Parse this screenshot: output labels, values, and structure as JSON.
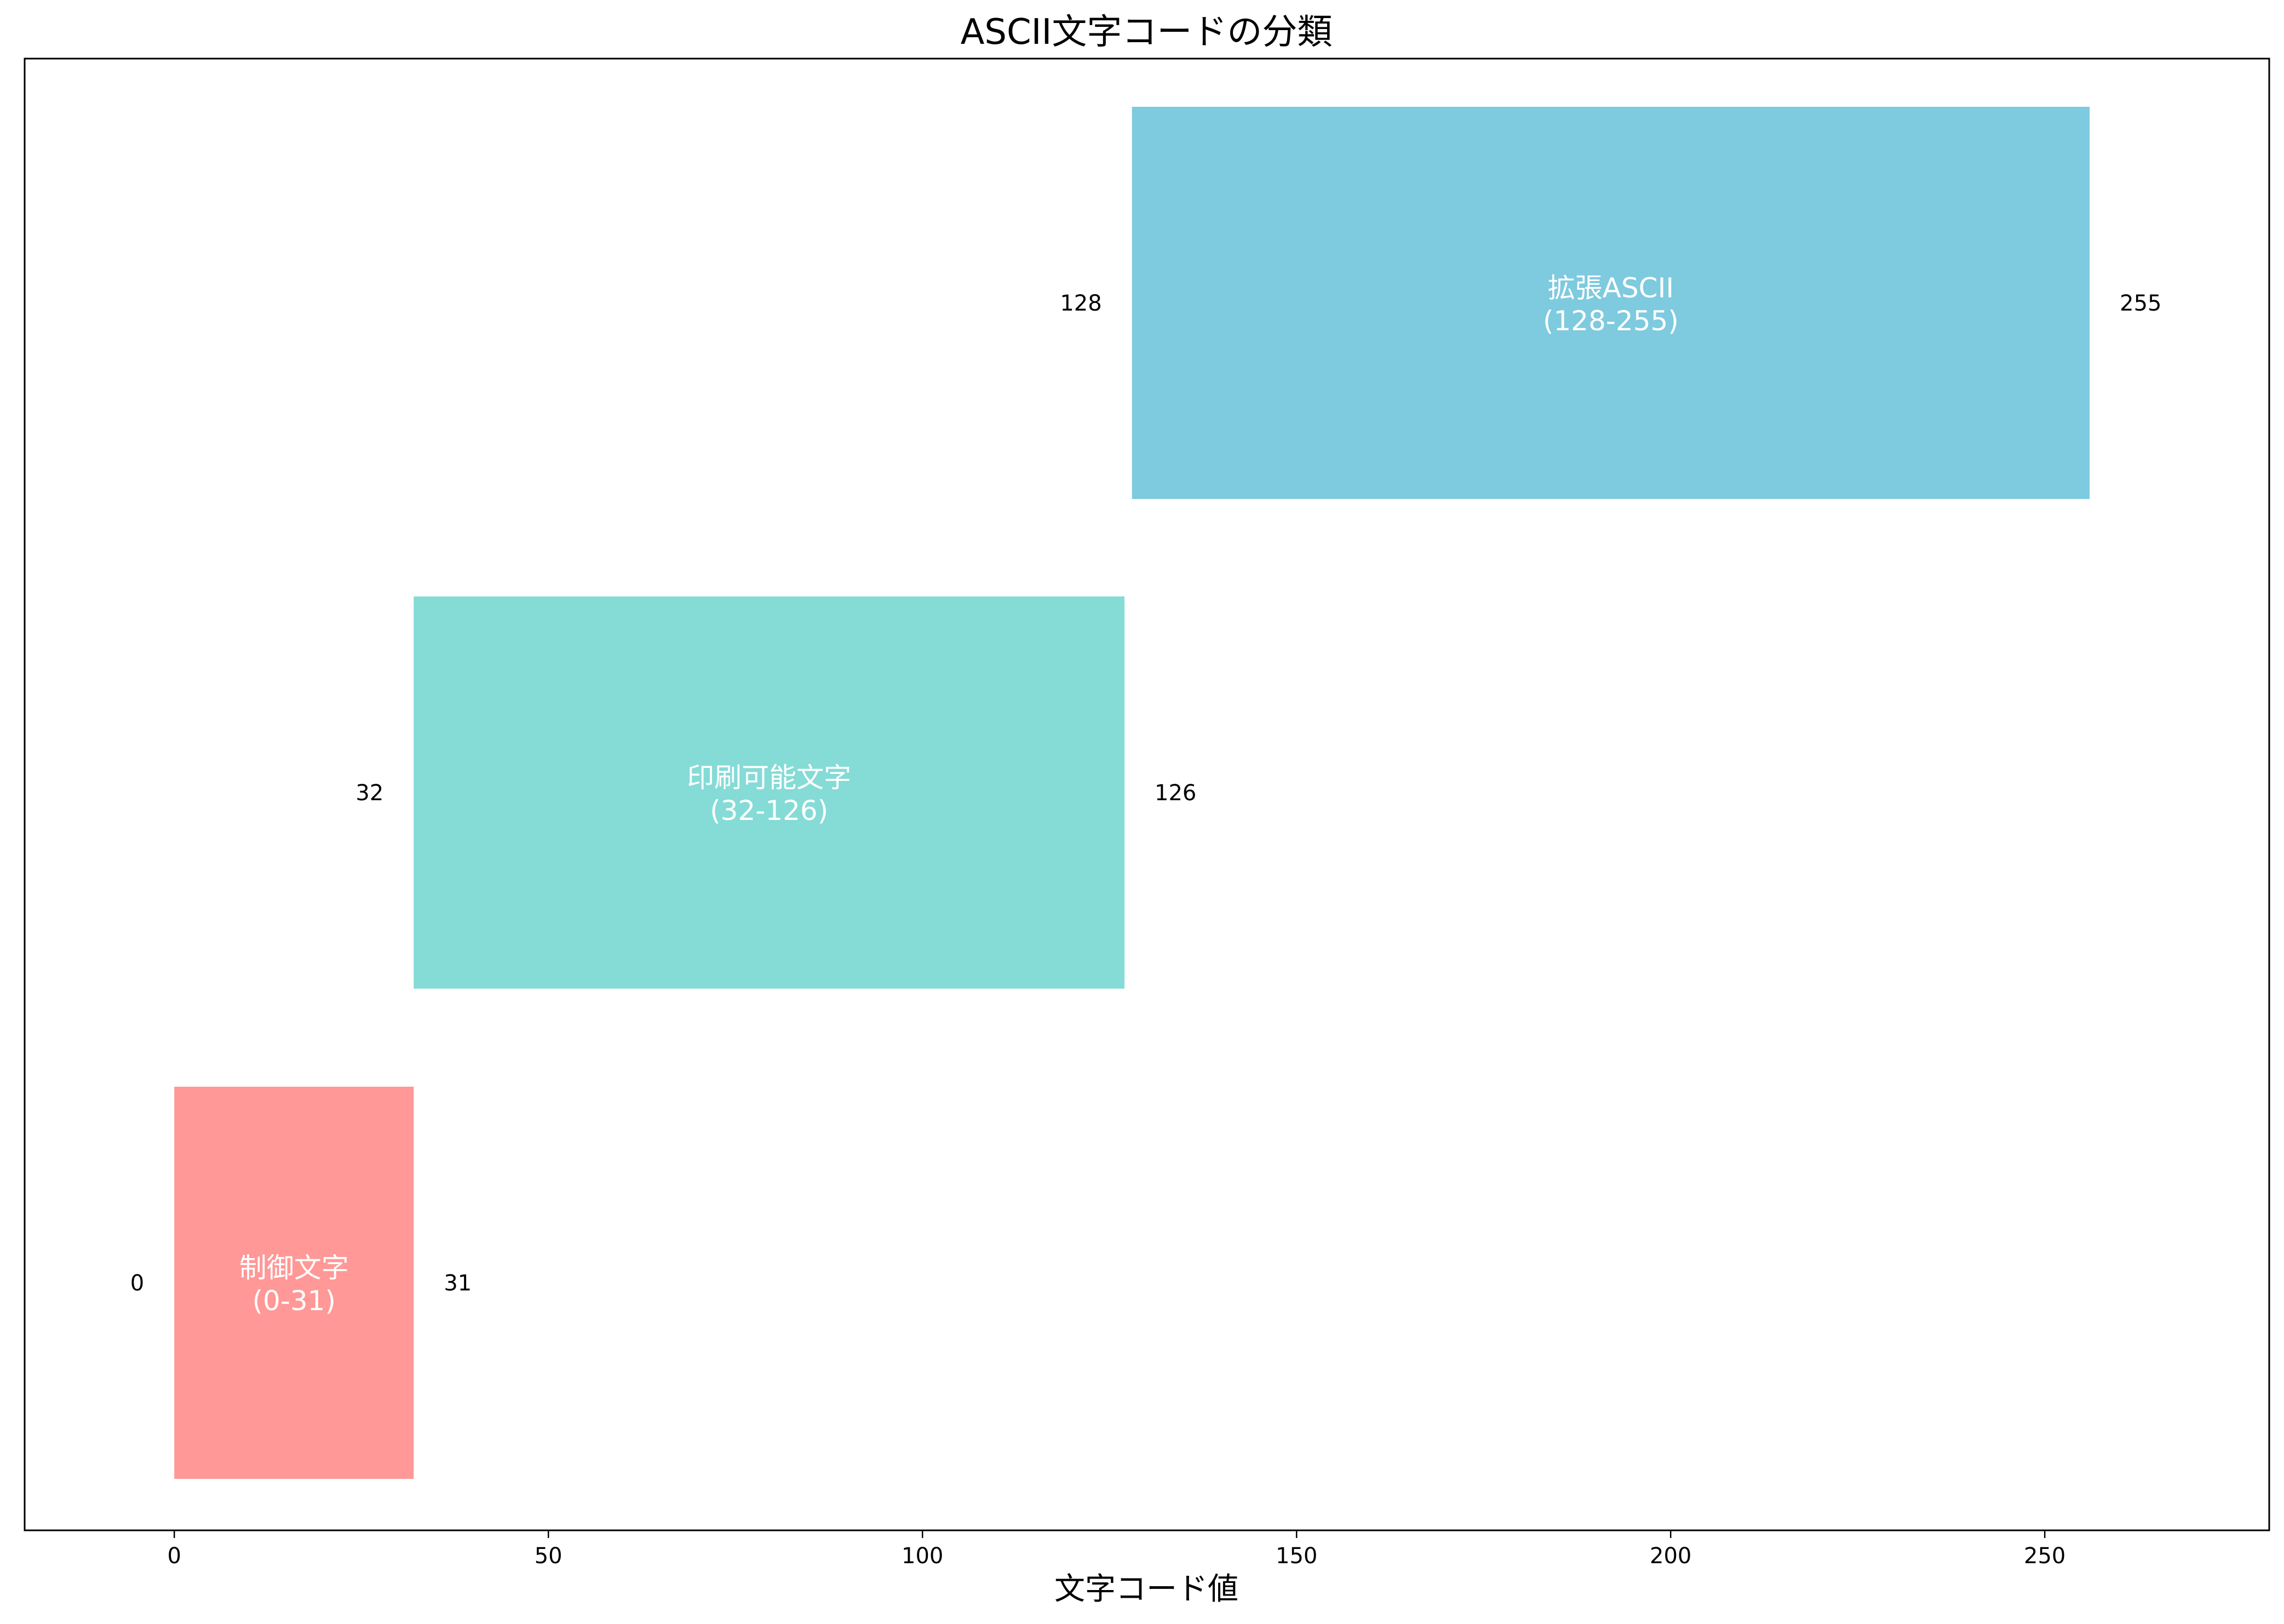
{
  "chart_data": {
    "type": "bar",
    "orientation": "horizontal-range",
    "title": "ASCII文字コードの分類",
    "xlabel": "文字コード値",
    "ylabel": "",
    "xlim": [
      -20,
      280
    ],
    "xticks": [
      0,
      50,
      100,
      150,
      200,
      250
    ],
    "grid": false,
    "legend": "none",
    "ranges": [
      {
        "label_line1": "制御文字",
        "label_line2": "(0-31)",
        "start": 0,
        "end": 31,
        "start_label": "0",
        "end_label": "31",
        "color": "#ff9896"
      },
      {
        "label_line1": "印刷可能文字",
        "label_line2": "(32-126)",
        "start": 32,
        "end": 126,
        "start_label": "32",
        "end_label": "126",
        "color": "#85dbd6"
      },
      {
        "label_line1": "拡張ASCII",
        "label_line2": "(128-255)",
        "start": 128,
        "end": 255,
        "start_label": "128",
        "end_label": "255",
        "color": "#7ecadf"
      }
    ]
  }
}
